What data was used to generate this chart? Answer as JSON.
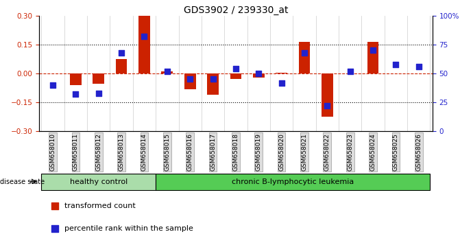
{
  "title": "GDS3902 / 239330_at",
  "samples": [
    "GSM658010",
    "GSM658011",
    "GSM658012",
    "GSM658013",
    "GSM658014",
    "GSM658015",
    "GSM658016",
    "GSM658017",
    "GSM658018",
    "GSM658019",
    "GSM658020",
    "GSM658021",
    "GSM658022",
    "GSM658023",
    "GSM658024",
    "GSM658025",
    "GSM658026"
  ],
  "red_values": [
    0.0,
    -0.06,
    -0.055,
    0.075,
    0.3,
    0.01,
    -0.08,
    -0.11,
    -0.03,
    -0.02,
    0.005,
    0.165,
    -0.225,
    0.0,
    0.165,
    0.0,
    0.0
  ],
  "blue_pct": [
    40,
    32,
    33,
    68,
    82,
    52,
    45,
    45,
    54,
    50,
    42,
    68,
    22,
    52,
    70,
    58,
    56
  ],
  "ylim_left": [
    -0.3,
    0.3
  ],
  "ylim_right": [
    0,
    100
  ],
  "left_ticks": [
    -0.3,
    -0.15,
    0.0,
    0.15,
    0.3
  ],
  "right_ticks": [
    0,
    25,
    50,
    75,
    100
  ],
  "healthy_count": 5,
  "healthy_label": "healthy control",
  "disease_label": "chronic B-lymphocytic leukemia",
  "disease_state_label": "disease state",
  "legend_red": "transformed count",
  "legend_blue": "percentile rank within the sample",
  "bar_color": "#cc2200",
  "dot_color": "#2222cc",
  "background_color": "#ffffff",
  "plot_bg": "#ffffff",
  "healthy_color": "#aaddaa",
  "disease_color": "#55cc55",
  "bar_width": 0.5,
  "dot_size": 35
}
